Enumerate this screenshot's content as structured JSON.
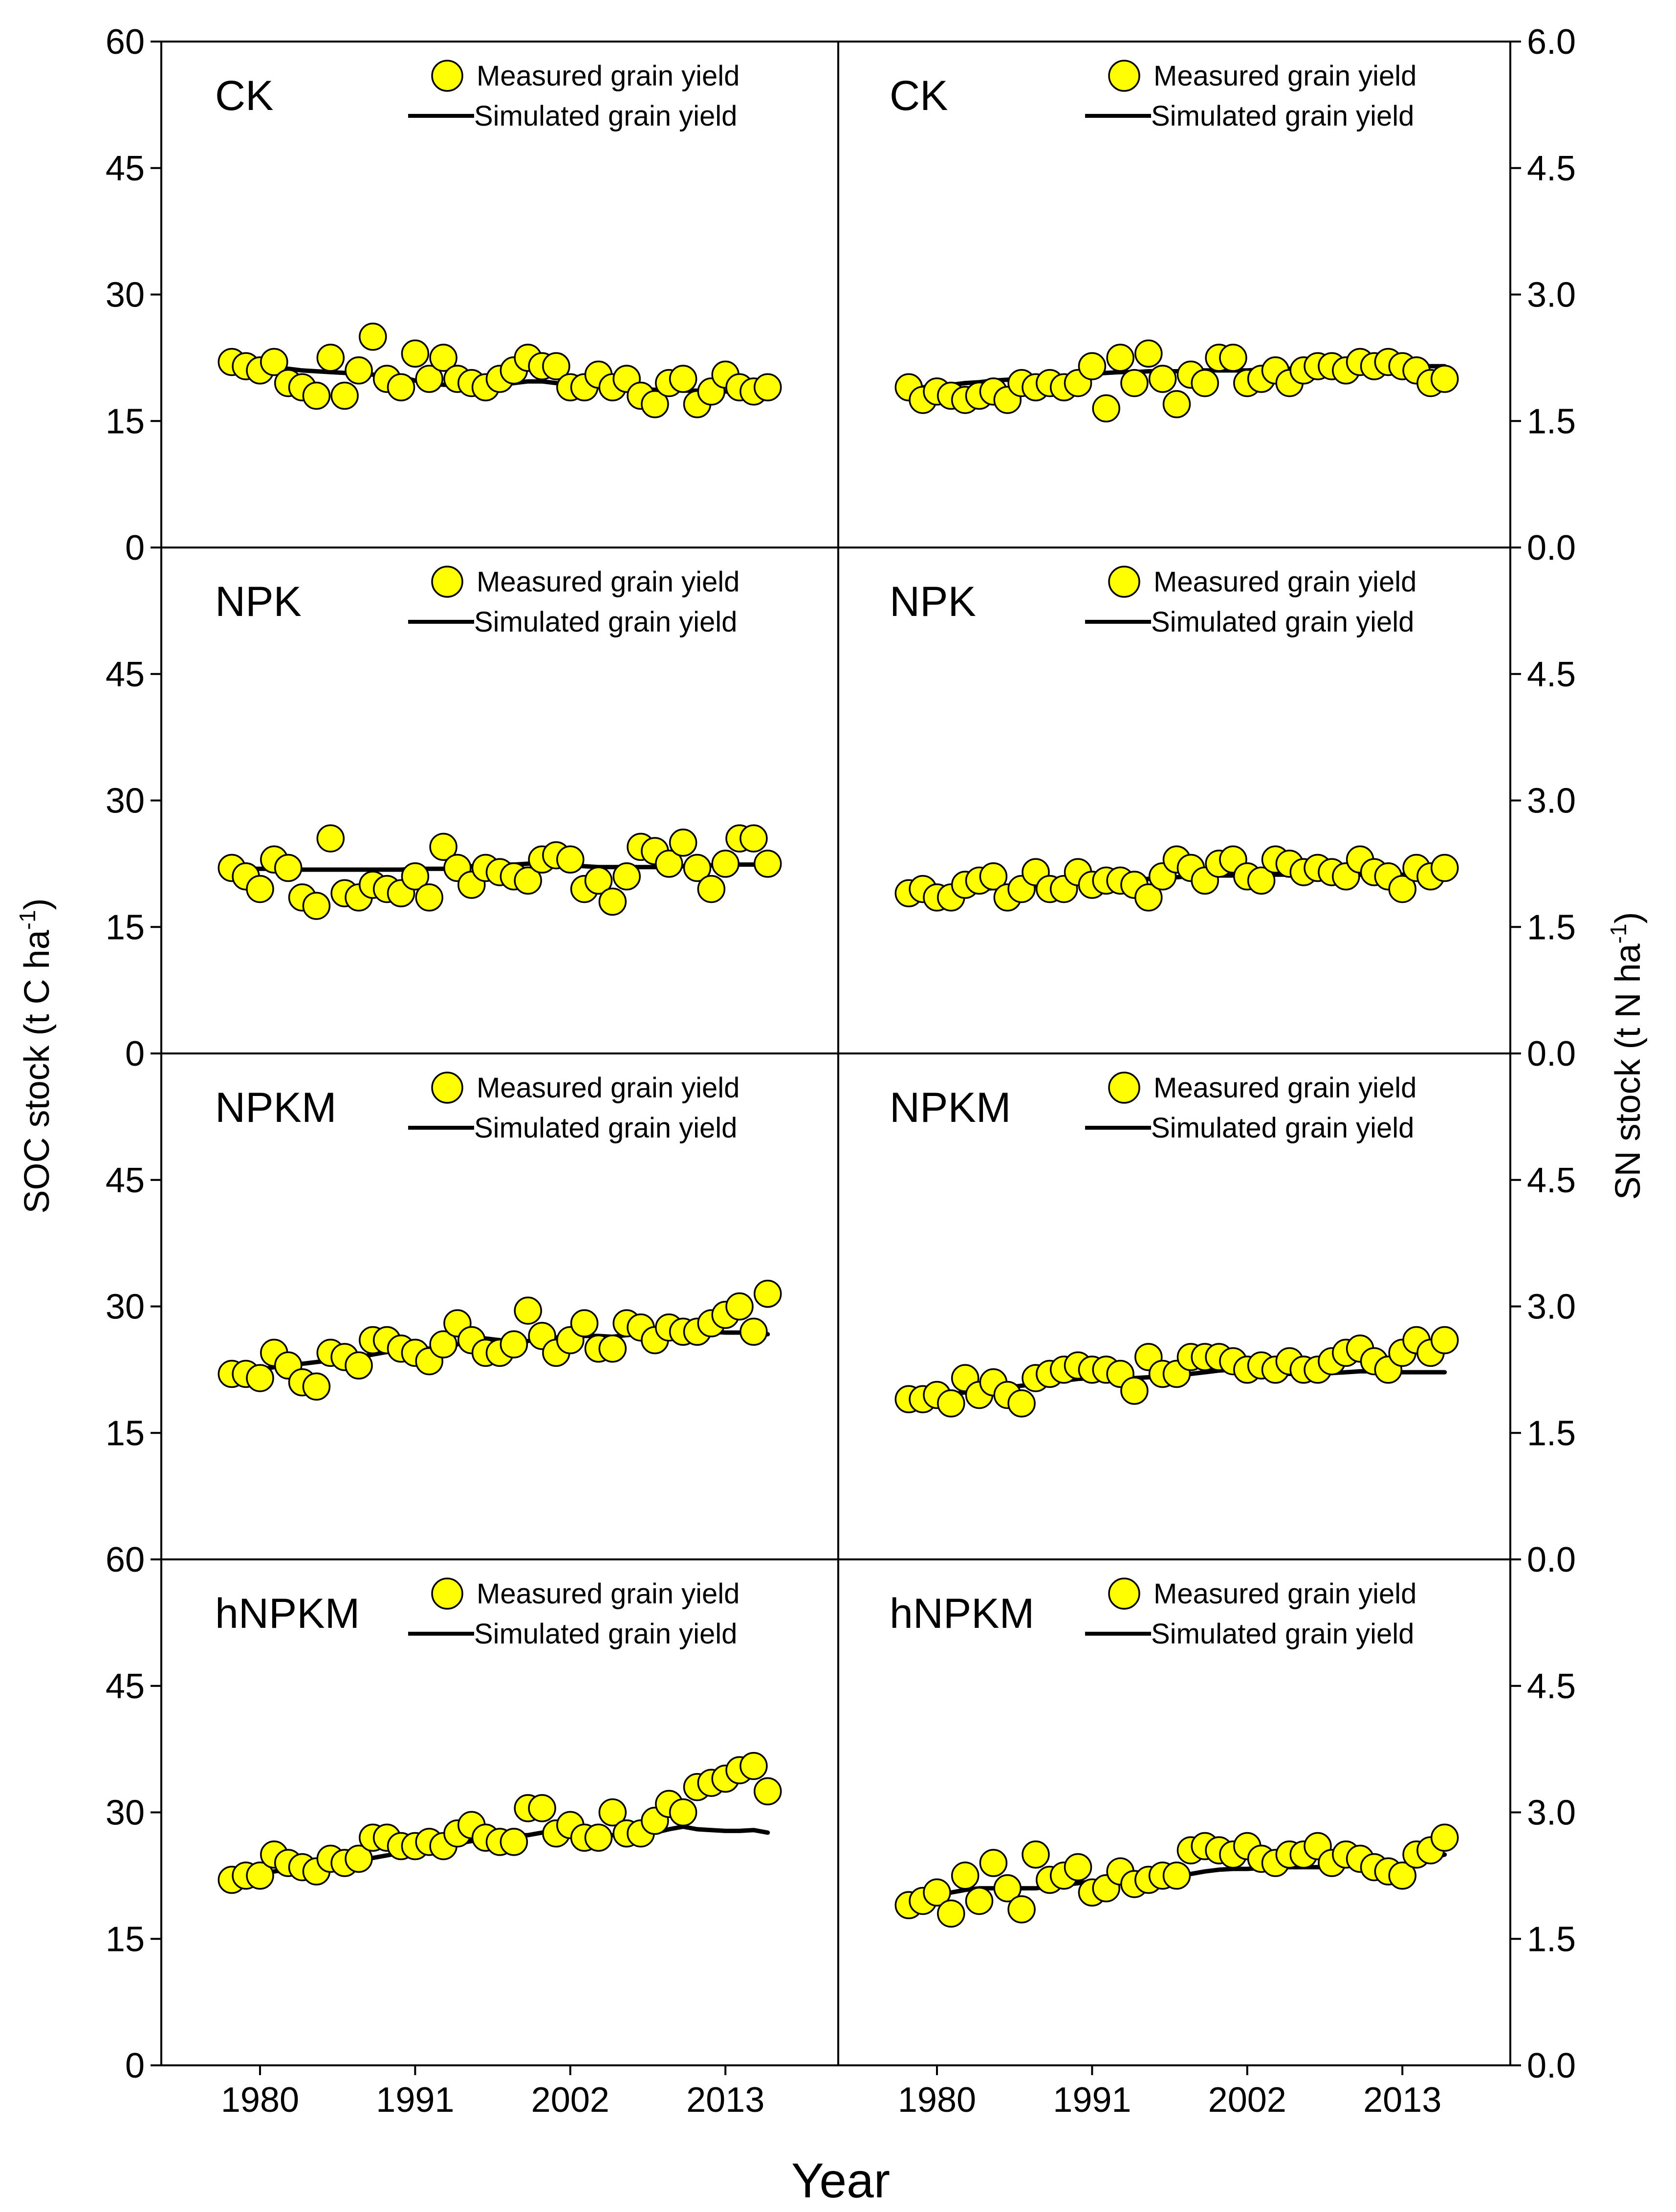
{
  "figure": {
    "xlabel": "Year",
    "left_axis_title": "SOC stock (t C ha",
    "right_axis_title": "SN stock (t N ha",
    "axis_title_sup": "-1",
    "left_ticks": [
      "0",
      "15",
      "30",
      "45",
      "60"
    ],
    "right_ticks": [
      "0.0",
      "1.5",
      "3.0",
      "4.5",
      "6.0"
    ],
    "x_ticks": [
      "1980",
      "1991",
      "2002",
      "2013"
    ],
    "legend_measured": "Measured grain yield",
    "legend_simulated": "Simulated grain yield",
    "marker_color": "#FFFF00",
    "line_color": "#000000"
  },
  "chart_data": [
    {
      "type": "scatter+line",
      "panel": "CK",
      "axis": "left",
      "ylim": [
        0,
        60
      ],
      "xlim": [
        1973,
        2021
      ],
      "x": [
        1978,
        1979,
        1980,
        1981,
        1982,
        1983,
        1984,
        1985,
        1986,
        1987,
        1988,
        1989,
        1990,
        1991,
        1992,
        1993,
        1994,
        1995,
        1996,
        1997,
        1998,
        1999,
        2000,
        2001,
        2002,
        2003,
        2004,
        2005,
        2006,
        2007,
        2008,
        2009,
        2010,
        2011,
        2012,
        2013,
        2014,
        2015,
        2016
      ],
      "measured": [
        22,
        21.5,
        21,
        22,
        19.5,
        19,
        18,
        22.5,
        18,
        21,
        25,
        20,
        19,
        23,
        20,
        22.5,
        20,
        19.5,
        19,
        20,
        21,
        22.5,
        21.5,
        21.5,
        19,
        19,
        20.5,
        19,
        20,
        18,
        17,
        19.5,
        20,
        17,
        18.5,
        20.5,
        19,
        18.5,
        19
      ],
      "simulated": [
        22,
        21.8,
        21.6,
        21.4,
        21.2,
        21,
        20.9,
        20.8,
        20.7,
        20.6,
        20.5,
        20.4,
        20.2,
        19.8,
        19.5,
        19.3,
        19.3,
        19.2,
        19.2,
        19.3,
        19.5,
        19.7,
        19.7,
        19.5,
        19.2,
        19,
        19,
        18.9,
        18.9,
        18.8,
        18.7,
        18.7,
        18.6,
        18.6,
        18.5,
        18.5,
        18.5,
        18.5,
        18.5
      ]
    },
    {
      "type": "scatter+line",
      "panel": "CK",
      "axis": "right",
      "ylim": [
        0,
        6
      ],
      "xlim": [
        1973,
        2021
      ],
      "x": [
        1978,
        1979,
        1980,
        1981,
        1982,
        1983,
        1984,
        1985,
        1986,
        1987,
        1988,
        1989,
        1990,
        1991,
        1992,
        1993,
        1994,
        1995,
        1996,
        1997,
        1998,
        1999,
        2000,
        2001,
        2002,
        2003,
        2004,
        2005,
        2006,
        2007,
        2008,
        2009,
        2010,
        2011,
        2012,
        2013,
        2014,
        2015,
        2016
      ],
      "measured": [
        1.9,
        1.75,
        1.85,
        1.8,
        1.75,
        1.8,
        1.85,
        1.75,
        1.95,
        1.9,
        1.95,
        1.9,
        1.95,
        2.15,
        1.65,
        2.25,
        1.95,
        2.3,
        2.0,
        1.7,
        2.05,
        1.95,
        2.25,
        2.25,
        1.95,
        2.0,
        2.1,
        1.95,
        2.1,
        2.15,
        2.15,
        2.1,
        2.2,
        2.15,
        2.2,
        2.15,
        2.1,
        1.95,
        2.0
      ],
      "simulated": [
        1.88,
        1.9,
        1.92,
        1.93,
        1.95,
        1.96,
        1.98,
        1.99,
        2.0,
        2.01,
        2.02,
        2.03,
        2.05,
        2.06,
        2.07,
        2.08,
        2.08,
        2.09,
        2.09,
        2.09,
        2.1,
        2.1,
        2.1,
        2.1,
        2.1,
        2.11,
        2.11,
        2.12,
        2.12,
        2.12,
        2.13,
        2.13,
        2.13,
        2.14,
        2.14,
        2.14,
        2.15,
        2.15,
        2.15
      ]
    },
    {
      "type": "scatter+line",
      "panel": "NPK",
      "axis": "left",
      "ylim": [
        0,
        60
      ],
      "xlim": [
        1973,
        2021
      ],
      "x": [
        1978,
        1979,
        1980,
        1981,
        1982,
        1983,
        1984,
        1985,
        1986,
        1987,
        1988,
        1989,
        1990,
        1991,
        1992,
        1993,
        1994,
        1995,
        1996,
        1997,
        1998,
        1999,
        2000,
        2001,
        2002,
        2003,
        2004,
        2005,
        2006,
        2007,
        2008,
        2009,
        2010,
        2011,
        2012,
        2013,
        2014,
        2015,
        2016
      ],
      "measured": [
        22,
        21,
        19.5,
        23,
        22,
        18.5,
        17.5,
        25.5,
        19,
        18.5,
        20,
        19.5,
        19,
        21,
        18.5,
        24.5,
        22,
        20,
        22,
        21.5,
        21,
        20.5,
        23,
        23.5,
        23,
        19.5,
        20.5,
        18,
        21,
        24.5,
        24,
        22.5,
        25,
        22,
        19.5,
        22.5,
        25.5,
        25.5,
        22.5
      ],
      "simulated": [
        22,
        21.9,
        21.9,
        21.9,
        21.9,
        21.8,
        21.8,
        21.8,
        21.8,
        21.8,
        21.8,
        21.8,
        21.8,
        21.9,
        21.9,
        21.9,
        22,
        22.2,
        22.3,
        22.4,
        22.4,
        22.5,
        22.5,
        22.4,
        22.3,
        22.2,
        22.1,
        22.1,
        22.1,
        22.1,
        22.1,
        22.1,
        22.2,
        22.3,
        22.3,
        22.3,
        22.4,
        22.4,
        22.4
      ]
    },
    {
      "type": "scatter+line",
      "panel": "NPK",
      "axis": "right",
      "ylim": [
        0,
        6
      ],
      "xlim": [
        1973,
        2021
      ],
      "x": [
        1978,
        1979,
        1980,
        1981,
        1982,
        1983,
        1984,
        1985,
        1986,
        1987,
        1988,
        1989,
        1990,
        1991,
        1992,
        1993,
        1994,
        1995,
        1996,
        1997,
        1998,
        1999,
        2000,
        2001,
        2002,
        2003,
        2004,
        2005,
        2006,
        2007,
        2008,
        2009,
        2010,
        2011,
        2012,
        2013,
        2014,
        2015,
        2016
      ],
      "measured": [
        1.9,
        1.95,
        1.85,
        1.85,
        2.0,
        2.05,
        2.1,
        1.85,
        1.95,
        2.15,
        1.95,
        1.95,
        2.15,
        2.0,
        2.05,
        2.05,
        2.0,
        1.85,
        2.1,
        2.3,
        2.2,
        2.05,
        2.25,
        2.3,
        2.1,
        2.05,
        2.3,
        2.25,
        2.15,
        2.2,
        2.15,
        2.1,
        2.3,
        2.15,
        2.1,
        1.95,
        2.2,
        2.1,
        2.2
      ],
      "simulated": [
        1.9,
        1.91,
        1.92,
        1.93,
        1.94,
        1.95,
        1.96,
        1.97,
        1.98,
        1.99,
        2.0,
        2.01,
        2.02,
        2.03,
        2.04,
        2.05,
        2.06,
        2.07,
        2.08,
        2.09,
        2.1,
        2.1,
        2.11,
        2.11,
        2.11,
        2.11,
        2.12,
        2.12,
        2.12,
        2.12,
        2.12,
        2.12,
        2.12,
        2.12,
        2.12,
        2.12,
        2.12,
        2.12,
        2.12
      ]
    },
    {
      "type": "scatter+line",
      "panel": "NPKM",
      "axis": "left",
      "ylim": [
        0,
        60
      ],
      "xlim": [
        1973,
        2021
      ],
      "x": [
        1978,
        1979,
        1980,
        1981,
        1982,
        1983,
        1984,
        1985,
        1986,
        1987,
        1988,
        1989,
        1990,
        1991,
        1992,
        1993,
        1994,
        1995,
        1996,
        1997,
        1998,
        1999,
        2000,
        2001,
        2002,
        2003,
        2004,
        2005,
        2006,
        2007,
        2008,
        2009,
        2010,
        2011,
        2012,
        2013,
        2014,
        2015,
        2016
      ],
      "measured": [
        22,
        22,
        21.5,
        24.5,
        23,
        21,
        20.5,
        24.5,
        24,
        23,
        26,
        26,
        25,
        24.5,
        23.5,
        25.5,
        28,
        26,
        24.5,
        24.5,
        25.5,
        29.5,
        26.5,
        24.5,
        26,
        28,
        25,
        25,
        28,
        27.5,
        26,
        27.5,
        27,
        27,
        28,
        29,
        30,
        27,
        31.5
      ],
      "simulated": [
        22,
        22.2,
        22.5,
        22.8,
        23,
        23.2,
        23.4,
        23.6,
        23.8,
        24,
        24.3,
        24.6,
        24.9,
        25,
        25,
        25.2,
        25.5,
        25.9,
        26.2,
        26,
        25.8,
        25.9,
        26.2,
        26.3,
        26.4,
        26.5,
        26.5,
        26.4,
        26.6,
        26.9,
        27,
        27.1,
        27,
        27,
        27,
        26.9,
        26.9,
        26.9,
        26.7
      ]
    },
    {
      "type": "scatter+line",
      "panel": "NPKM",
      "axis": "right",
      "ylim": [
        0,
        6
      ],
      "xlim": [
        1973,
        2021
      ],
      "x": [
        1978,
        1979,
        1980,
        1981,
        1982,
        1983,
        1984,
        1985,
        1986,
        1987,
        1988,
        1989,
        1990,
        1991,
        1992,
        1993,
        1994,
        1995,
        1996,
        1997,
        1998,
        1999,
        2000,
        2001,
        2002,
        2003,
        2004,
        2005,
        2006,
        2007,
        2008,
        2009,
        2010,
        2011,
        2012,
        2013,
        2014,
        2015,
        2016
      ],
      "measured": [
        1.9,
        1.9,
        1.95,
        1.85,
        2.15,
        1.95,
        2.1,
        1.95,
        1.85,
        2.15,
        2.2,
        2.25,
        2.3,
        2.25,
        2.25,
        2.2,
        2.0,
        2.4,
        2.2,
        2.2,
        2.4,
        2.4,
        2.4,
        2.35,
        2.25,
        2.3,
        2.25,
        2.35,
        2.25,
        2.25,
        2.35,
        2.45,
        2.5,
        2.35,
        2.25,
        2.45,
        2.6,
        2.45,
        2.6
      ],
      "simulated": [
        1.9,
        1.92,
        1.94,
        1.96,
        1.98,
        2.0,
        2.02,
        2.04,
        2.06,
        2.08,
        2.1,
        2.12,
        2.14,
        2.15,
        2.15,
        2.15,
        2.15,
        2.16,
        2.17,
        2.18,
        2.2,
        2.22,
        2.24,
        2.25,
        2.24,
        2.22,
        2.2,
        2.2,
        2.2,
        2.2,
        2.21,
        2.22,
        2.23,
        2.23,
        2.23,
        2.22,
        2.22,
        2.22,
        2.22
      ]
    },
    {
      "type": "scatter+line",
      "panel": "hNPKM",
      "axis": "left",
      "ylim": [
        0,
        60
      ],
      "xlim": [
        1973,
        2021
      ],
      "x": [
        1978,
        1979,
        1980,
        1981,
        1982,
        1983,
        1984,
        1985,
        1986,
        1987,
        1988,
        1989,
        1990,
        1991,
        1992,
        1993,
        1994,
        1995,
        1996,
        1997,
        1998,
        1999,
        2000,
        2001,
        2002,
        2003,
        2004,
        2005,
        2006,
        2007,
        2008,
        2009,
        2010,
        2011,
        2012,
        2013,
        2014,
        2015,
        2016
      ],
      "measured": [
        22,
        22.5,
        22.5,
        25,
        24,
        23.5,
        23,
        24.5,
        24,
        24.5,
        27,
        27,
        26,
        26,
        26.5,
        26,
        27.5,
        28.5,
        27,
        26.5,
        26.5,
        30.5,
        30.5,
        27.5,
        28.5,
        27,
        27,
        30,
        27.5,
        27.5,
        29,
        31,
        30,
        33,
        33.5,
        34,
        35,
        35.5,
        32.5
      ],
      "simulated": [
        22,
        22.3,
        22.6,
        23,
        23.2,
        23.4,
        23.6,
        23.8,
        24,
        24.3,
        24.6,
        24.9,
        25.2,
        25.5,
        25.8,
        26,
        26.3,
        26.6,
        26.9,
        27.2,
        27.3,
        27.3,
        27.6,
        27.8,
        27.5,
        27.3,
        27.3,
        27.3,
        27.4,
        27.5,
        27.6,
        28,
        28.3,
        28,
        27.9,
        27.8,
        27.8,
        27.9,
        27.6
      ]
    },
    {
      "type": "scatter+line",
      "panel": "hNPKM",
      "axis": "right",
      "ylim": [
        0,
        6
      ],
      "xlim": [
        1973,
        2021
      ],
      "x": [
        1978,
        1979,
        1980,
        1981,
        1982,
        1983,
        1984,
        1985,
        1986,
        1987,
        1988,
        1989,
        1990,
        1991,
        1992,
        1993,
        1994,
        1995,
        1996,
        1997,
        1998,
        1999,
        2000,
        2001,
        2002,
        2003,
        2004,
        2005,
        2006,
        2007,
        2008,
        2009,
        2010,
        2011,
        2012,
        2013,
        2014,
        2015,
        2016
      ],
      "measured": [
        1.9,
        1.95,
        2.05,
        1.8,
        2.25,
        1.95,
        2.4,
        2.1,
        1.85,
        2.5,
        2.2,
        2.25,
        2.35,
        2.05,
        2.1,
        2.3,
        2.15,
        2.2,
        2.25,
        2.25,
        2.55,
        2.6,
        2.55,
        2.5,
        2.6,
        2.45,
        2.4,
        2.5,
        2.5,
        2.6,
        2.4,
        2.5,
        2.45,
        2.35,
        2.3,
        2.25,
        2.5,
        2.55,
        2.7
      ],
      "simulated": [
        1.9,
        1.95,
        2.0,
        2.05,
        2.08,
        2.1,
        2.1,
        2.1,
        2.1,
        2.1,
        2.12,
        2.14,
        2.16,
        2.18,
        2.2,
        2.22,
        2.22,
        2.23,
        2.24,
        2.25,
        2.27,
        2.3,
        2.32,
        2.33,
        2.33,
        2.34,
        2.35,
        2.35,
        2.35,
        2.35,
        2.36,
        2.37,
        2.38,
        2.38,
        2.38,
        2.38,
        2.4,
        2.45,
        2.5
      ]
    }
  ]
}
